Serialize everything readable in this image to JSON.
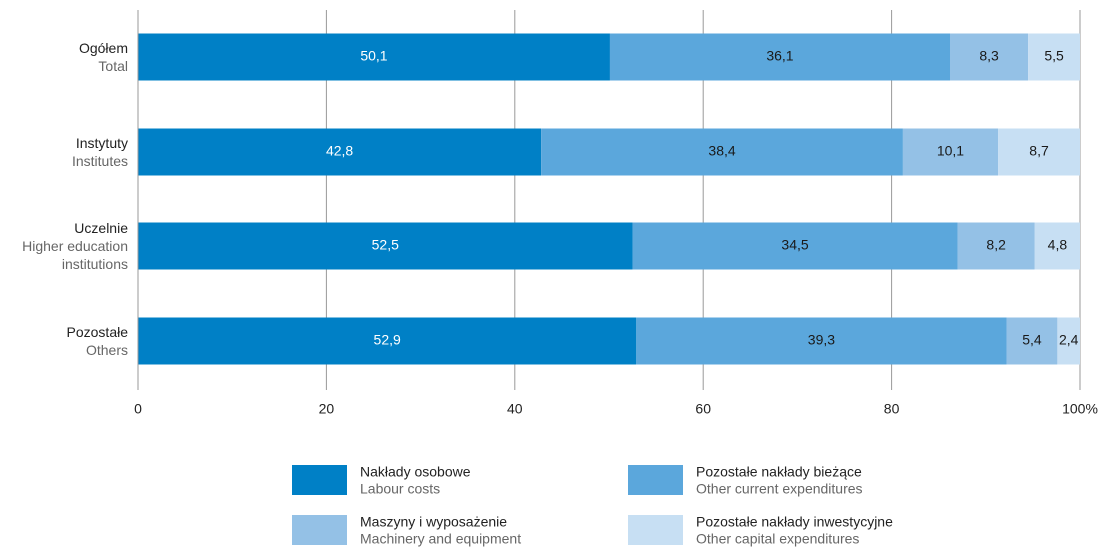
{
  "chart_data": {
    "type": "stacked-bar-horizontal",
    "categories": [
      "Ogółem",
      "Instytuty",
      "Uczelnie",
      "Pozostałe"
    ],
    "category_subtitles": [
      "Total",
      "Institutes",
      "Higher education institutions",
      "Others"
    ],
    "series": [
      {
        "name": "Nakłady osobowe",
        "subtitle": "Labour costs",
        "color": "#0080c6",
        "label_color": "#ffffff",
        "values": [
          50.1,
          42.8,
          52.5,
          52.9
        ],
        "value_labels": [
          "50,1",
          "42,8",
          "52,5",
          "52,9"
        ]
      },
      {
        "name": "Pozostałe nakłady bieżące",
        "subtitle": "Other current expenditures",
        "color": "#5ba7dc",
        "label_color": "#1a1a1a",
        "values": [
          36.1,
          38.4,
          34.5,
          39.3
        ],
        "value_labels": [
          "36,1",
          "38,4",
          "34,5",
          "39,3"
        ]
      },
      {
        "name": "Maszyny i wyposażenie",
        "subtitle": "Machinery and equipment",
        "color": "#94c1e6",
        "label_color": "#1a1a1a",
        "values": [
          8.3,
          10.1,
          8.2,
          5.4
        ],
        "value_labels": [
          "8,3",
          "10,1",
          "8,2",
          "5,4"
        ]
      },
      {
        "name": "Pozostałe nakłady inwestycyjne",
        "subtitle": "Other capital expenditures",
        "color": "#c7dff3",
        "label_color": "#1a1a1a",
        "values": [
          5.5,
          8.7,
          4.8,
          2.4
        ],
        "value_labels": [
          "5,5",
          "8,7",
          "4,8",
          "2,4"
        ]
      }
    ],
    "xlim": [
      0,
      100
    ],
    "xticks": [
      0,
      20,
      40,
      60,
      80,
      {
        "value": 100,
        "label": "100%"
      }
    ],
    "grid": true
  }
}
